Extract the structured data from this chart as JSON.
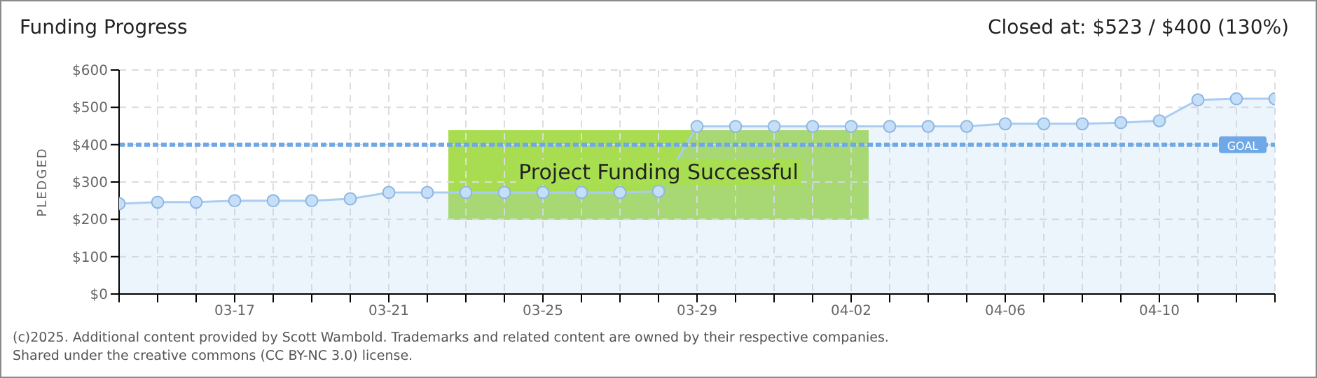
{
  "chart_data": {
    "type": "area",
    "title": "Funding Progress",
    "subtitle": "Closed at: $523 / $400 (130%)",
    "ylabel": "PLEDGED",
    "categories": [
      null,
      null,
      null,
      "03-17",
      null,
      null,
      null,
      "03-21",
      null,
      null,
      null,
      "03-25",
      null,
      null,
      null,
      "03-29",
      null,
      null,
      null,
      "04-02",
      null,
      null,
      null,
      "04-06",
      null,
      null,
      null,
      "04-10",
      null,
      null,
      null
    ],
    "series": [
      {
        "color": "#a9cdf2",
        "values": [
          242,
          246,
          246,
          250,
          250,
          250,
          255,
          272,
          272,
          272,
          272,
          272,
          272,
          272,
          275,
          449,
          449,
          449,
          449,
          449,
          449,
          449,
          449,
          456,
          456,
          456,
          459,
          464,
          520,
          523,
          523
        ]
      }
    ],
    "ylim": [
      0,
      600
    ],
    "yticks": [
      {
        "value": 0,
        "label": "$0"
      },
      {
        "value": 100,
        "label": "$100"
      },
      {
        "value": 200,
        "label": "$200"
      },
      {
        "value": 300,
        "label": "$300"
      },
      {
        "value": 400,
        "label": "$400"
      },
      {
        "value": 500,
        "label": "$500"
      },
      {
        "value": 600,
        "label": "$600"
      }
    ],
    "grid": true,
    "marker": "circle",
    "legend": false,
    "ref_lines": [
      {
        "axis": "y",
        "value": 400,
        "label": "GOAL",
        "color": "#6fa8e6",
        "line_style": "dashed"
      }
    ],
    "annotations": [
      "Project Funding Successful",
      "(c)2025. Additional content provided by Scott Wambold. Trademarks and related content are owned by their respective companies.",
      "Shared under the creative commons (CC BY-NC 3.0) license."
    ]
  }
}
